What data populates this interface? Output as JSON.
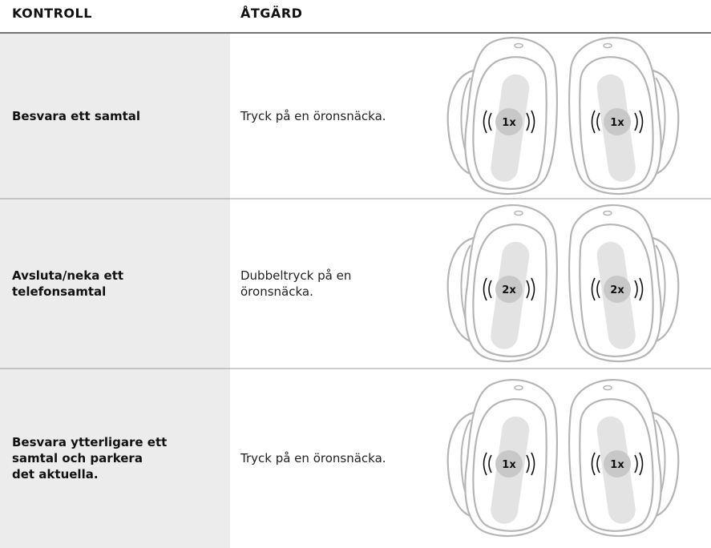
{
  "table": {
    "header": [
      "KONTROLL",
      "ÅTGÄRD"
    ],
    "rows": [
      {
        "control": [
          "Besvara ett samtal"
        ],
        "action": [
          "Tryck på en öronsnäcka."
        ],
        "taps": [
          "1x",
          "1x"
        ]
      },
      {
        "control": [
          "Avsluta/neka ett",
          "telefonsamtal"
        ],
        "action": [
          "Dubbeltryck på en",
          "öronsnäcka."
        ],
        "taps": [
          "2x",
          "2x"
        ]
      },
      {
        "control": [
          "Besvara ytterligare ett",
          "samtal och parkera",
          "det aktuella."
        ],
        "action": [
          "Tryck på en öronsnäcka."
        ],
        "taps": [
          "1x",
          "1x"
        ]
      }
    ]
  }
}
